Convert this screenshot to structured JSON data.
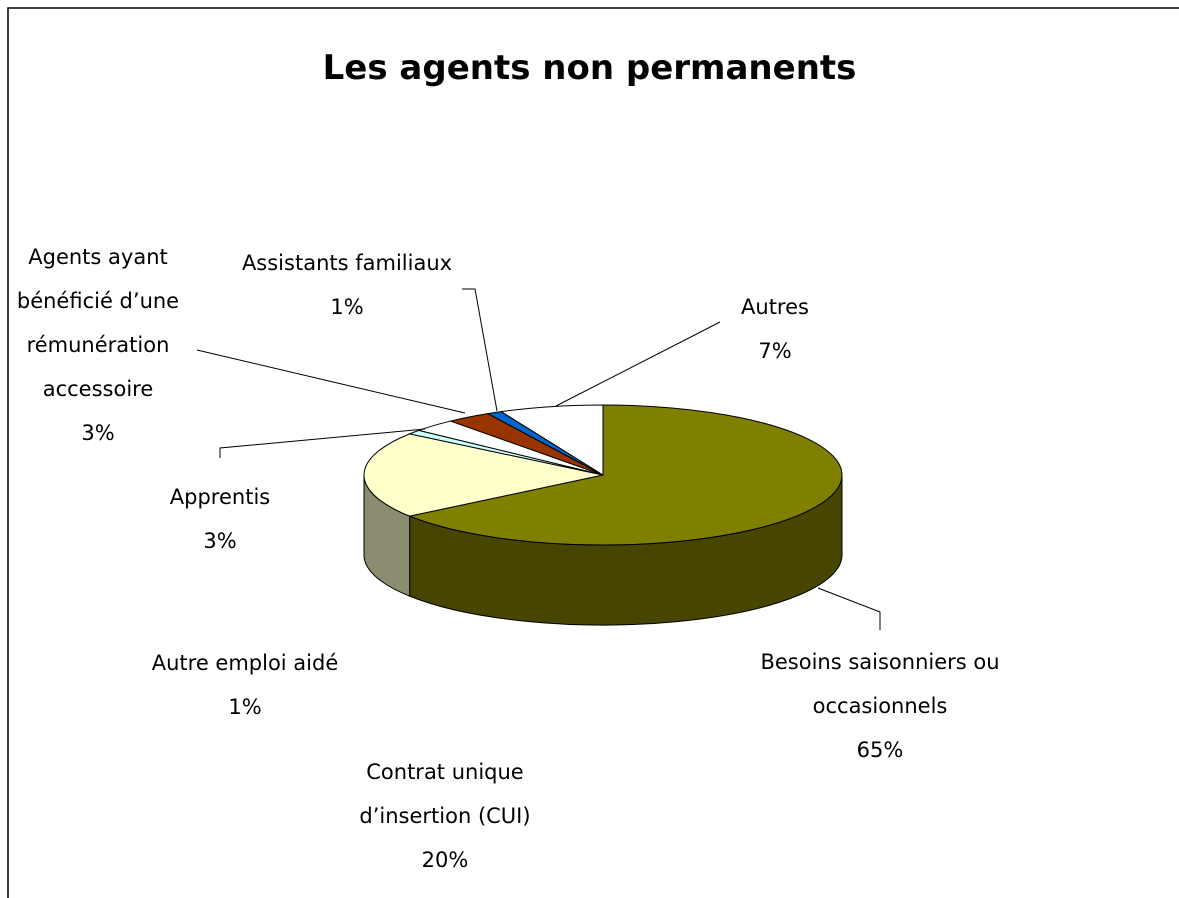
{
  "chart_data": {
    "type": "pie3d",
    "title": "Les agents non permanents",
    "categories": [
      "Besoins saisonniers ou occasionnels",
      "Contrat unique d’insertion (CUI)",
      "Autre emploi aidé",
      "Apprentis",
      "Agents ayant bénéficié d’une rémunération accessoire",
      "Assistants familiaux",
      "Autres"
    ],
    "values": [
      65,
      20,
      1,
      3,
      3,
      1,
      7
    ],
    "value_labels": [
      "65%",
      "20%",
      "1%",
      "3%",
      "3%",
      "1%",
      "7%"
    ],
    "colors": [
      "#808000",
      "#ffffcc",
      "#ccffff",
      "#ffffff",
      "#993300",
      "#0066cc",
      "#ffffff"
    ]
  }
}
